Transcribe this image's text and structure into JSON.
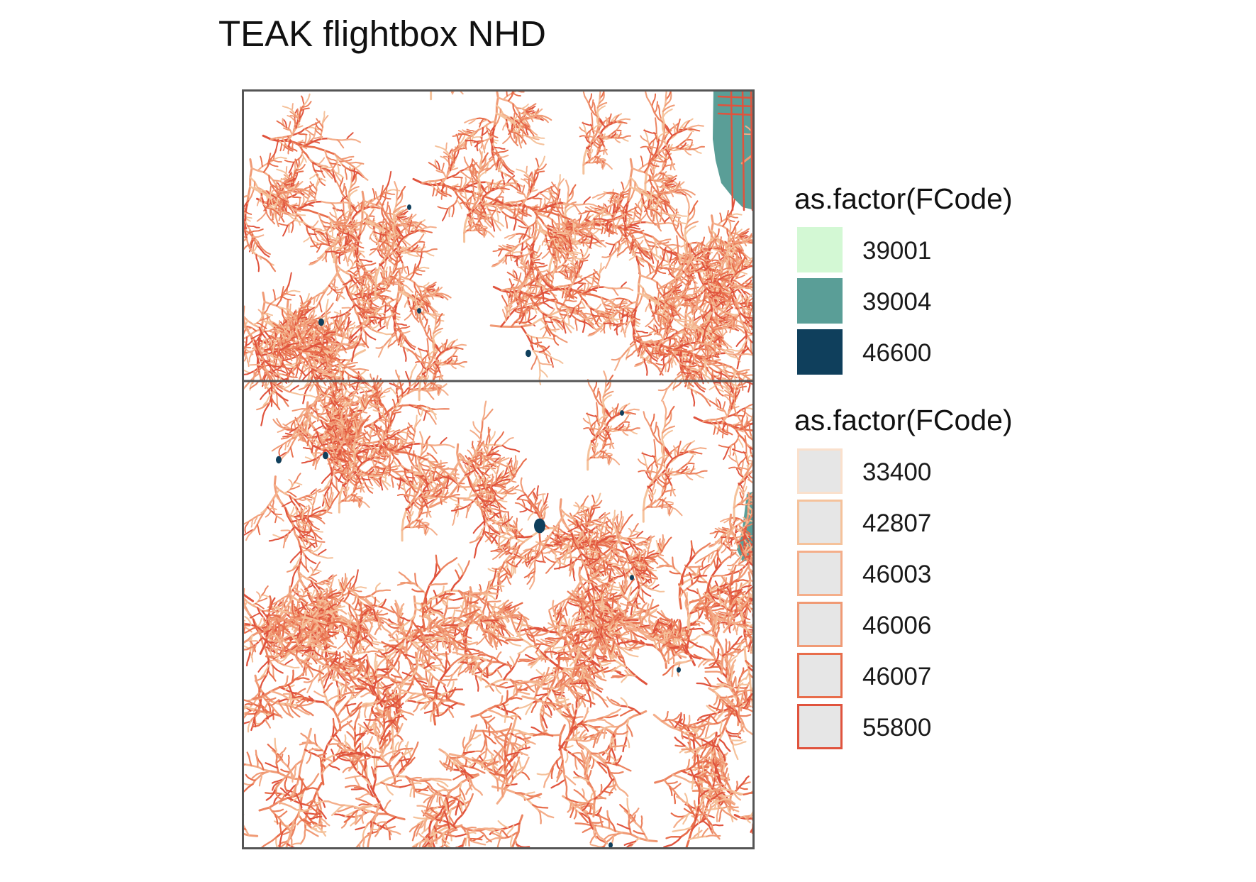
{
  "title": "TEAK flightbox NHD",
  "map": {
    "waterbody_color": "#5a9e97",
    "pond_color": "#0f3f5c",
    "flowline_colors": [
      "#f5c29b",
      "#f4ae8a",
      "#f09a75",
      "#ec8461",
      "#e86d4b",
      "#e0533d"
    ],
    "frame_color": "#555555"
  },
  "legend_polygons": {
    "title": "as.factor(FCode)",
    "items": [
      {
        "label": "39001",
        "fill": "#d3f8d4",
        "border": "#d3f8d4"
      },
      {
        "label": "39004",
        "fill": "#5a9e97",
        "border": "#5a9e97"
      },
      {
        "label": "46600",
        "fill": "#0f3f5c",
        "border": "#0f3f5c"
      }
    ]
  },
  "legend_lines": {
    "title": "as.factor(FCode)",
    "items": [
      {
        "label": "33400",
        "fill": "#e6e6e6",
        "border": "#fae0cc"
      },
      {
        "label": "42807",
        "fill": "#e6e6e6",
        "border": "#f5c29b"
      },
      {
        "label": "46003",
        "fill": "#e6e6e6",
        "border": "#f4ae8a"
      },
      {
        "label": "46006",
        "fill": "#e6e6e6",
        "border": "#f09a75"
      },
      {
        "label": "46007",
        "fill": "#e6e6e6",
        "border": "#e86d4b"
      },
      {
        "label": "55800",
        "fill": "#e6e6e6",
        "border": "#e0533d"
      }
    ]
  }
}
